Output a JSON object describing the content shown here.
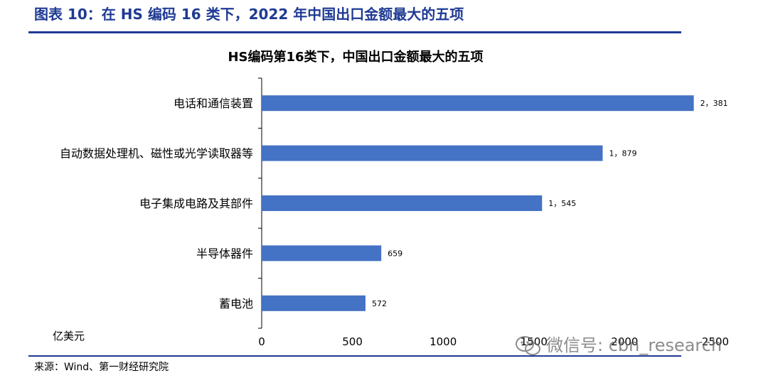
{
  "figure": {
    "title": "图表 10：在 HS 编码 16 类下，2022 年中国出口金额最大的五项",
    "source": "来源：Wind、第一财经研究院",
    "unit": "亿美元",
    "accent_color": "#1f3a93",
    "bar_color": "#4472c4"
  },
  "watermark": {
    "text": "微信号: cbn_research",
    "icon": "wechat-icon"
  },
  "chart_data": {
    "type": "bar",
    "orientation": "horizontal",
    "title": "HS编码第16类下，中国出口金额最大的五项",
    "categories": [
      "电话和通信装置",
      "自动数据处理机、磁性或光学读取器等",
      "电子集成电路及其部件",
      "半导体器件",
      "蓄电池"
    ],
    "values": [
      2381,
      1879,
      1545,
      659,
      572
    ],
    "value_labels": [
      "2，381",
      "1，879",
      "1，545",
      "659",
      "572"
    ],
    "xlim": [
      0,
      2500
    ],
    "xticks": [
      0,
      500,
      1000,
      1500,
      2000,
      2500
    ],
    "xtick_labels": [
      "0",
      "500",
      "1000",
      "1500",
      "2000",
      "2500"
    ],
    "xlabel": "",
    "ylabel": "",
    "grid": false,
    "legend": "none"
  }
}
